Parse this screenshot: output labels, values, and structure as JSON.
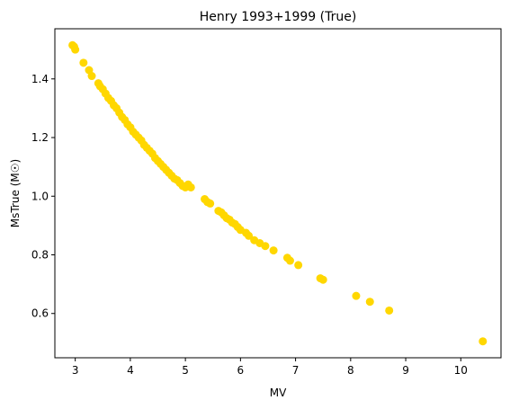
{
  "chart_data": {
    "type": "scatter",
    "title": "Henry 1993+1999 (True)",
    "xlabel": "MV",
    "ylabel": "MsTrue (M☉)",
    "xlim": [
      2.63,
      10.73
    ],
    "ylim": [
      0.449,
      1.571
    ],
    "xticks": [
      3,
      4,
      5,
      6,
      7,
      8,
      9,
      10
    ],
    "yticks": [
      0.6,
      0.8,
      1.0,
      1.2,
      1.4
    ],
    "ytick_labels": [
      "0.6",
      "0.8",
      "1.0",
      "1.2",
      "1.4"
    ],
    "grid": false,
    "marker_color": "#ffd700",
    "series": [
      {
        "x": [
          2.95,
          2.98,
          3.0,
          3.15,
          3.25,
          3.3,
          3.42,
          3.45,
          3.5,
          3.55,
          3.6,
          3.65,
          3.7,
          3.75,
          3.8,
          3.85,
          3.9,
          3.95,
          4.0,
          4.05,
          4.1,
          4.15,
          4.2,
          4.25,
          4.3,
          4.35,
          4.4,
          4.45,
          4.5,
          4.55,
          4.6,
          4.65,
          4.7,
          4.75,
          4.8,
          4.85,
          4.9,
          4.95,
          5.0,
          5.05,
          5.1,
          5.35,
          5.4,
          5.45,
          5.6,
          5.65,
          5.7,
          5.75,
          5.8,
          5.85,
          5.9,
          5.95,
          6.0,
          6.1,
          6.15,
          6.25,
          6.35,
          6.45,
          6.6,
          6.85,
          6.9,
          7.05,
          7.45,
          7.5,
          8.1,
          8.35,
          8.7,
          10.4
        ],
        "y": [
          1.515,
          1.51,
          1.5,
          1.455,
          1.43,
          1.41,
          1.385,
          1.375,
          1.365,
          1.35,
          1.335,
          1.325,
          1.31,
          1.3,
          1.285,
          1.27,
          1.26,
          1.245,
          1.235,
          1.22,
          1.21,
          1.2,
          1.19,
          1.175,
          1.165,
          1.155,
          1.145,
          1.13,
          1.12,
          1.11,
          1.1,
          1.09,
          1.08,
          1.07,
          1.06,
          1.055,
          1.045,
          1.035,
          1.03,
          1.04,
          1.03,
          0.99,
          0.98,
          0.975,
          0.95,
          0.945,
          0.935,
          0.925,
          0.92,
          0.91,
          0.905,
          0.895,
          0.885,
          0.875,
          0.865,
          0.85,
          0.84,
          0.83,
          0.815,
          0.79,
          0.78,
          0.765,
          0.72,
          0.715,
          0.66,
          0.64,
          0.61,
          0.505
        ]
      }
    ]
  }
}
